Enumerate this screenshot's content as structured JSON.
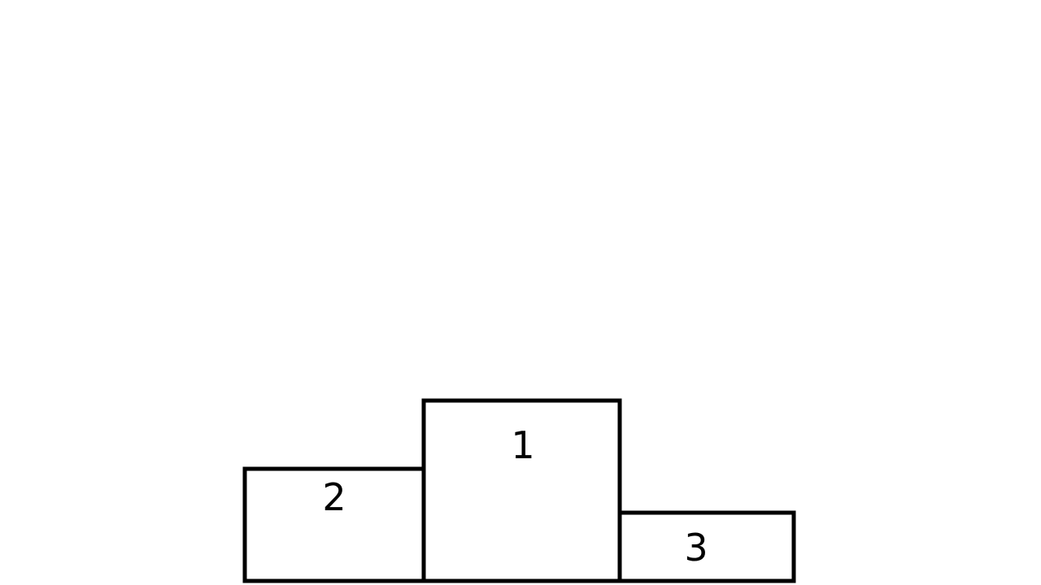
{
  "podium": {
    "blocks": [
      {
        "place": "2"
      },
      {
        "place": "1"
      },
      {
        "place": "3"
      }
    ],
    "colors": {
      "stroke": "#000000",
      "fill": "#ffffff",
      "background": "#ffffff"
    }
  }
}
